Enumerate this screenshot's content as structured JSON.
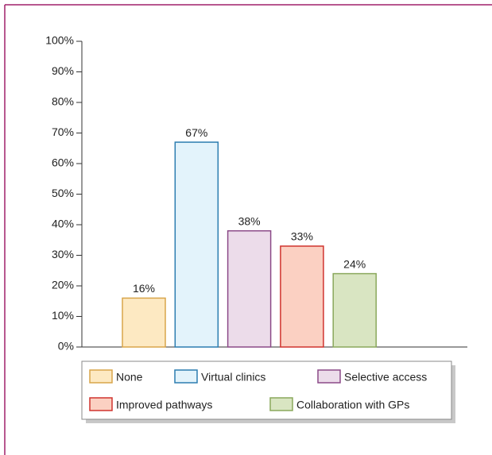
{
  "chart_data": {
    "type": "bar",
    "categories": [
      "None",
      "Virtual clinics",
      "Selective access",
      "Improved pathways",
      "Collaboration with GPs"
    ],
    "values": [
      16,
      67,
      38,
      33,
      24
    ],
    "value_labels": [
      "16%",
      "67%",
      "38%",
      "33%",
      "24%"
    ],
    "colors": [
      "#fde9c2",
      "#e3f3fb",
      "#ecdcea",
      "#fbd0c2",
      "#d9e5c2"
    ],
    "edge_colors": [
      "#d8a54a",
      "#2c7db0",
      "#8b4a88",
      "#d0332e",
      "#8aa85c"
    ],
    "ylim": [
      0,
      100
    ],
    "yticks": [
      {
        "value": 0,
        "label": "0%"
      },
      {
        "value": 10,
        "label": "10%"
      },
      {
        "value": 20,
        "label": "20%"
      },
      {
        "value": 30,
        "label": "30%"
      },
      {
        "value": 40,
        "label": "40%"
      },
      {
        "value": 50,
        "label": "50%"
      },
      {
        "value": 60,
        "label": "60%"
      },
      {
        "value": 70,
        "label": "70%"
      },
      {
        "value": 80,
        "label": "80%"
      },
      {
        "value": 90,
        "label": "90%"
      },
      {
        "value": 100,
        "label": "100%"
      }
    ],
    "grid": false
  }
}
